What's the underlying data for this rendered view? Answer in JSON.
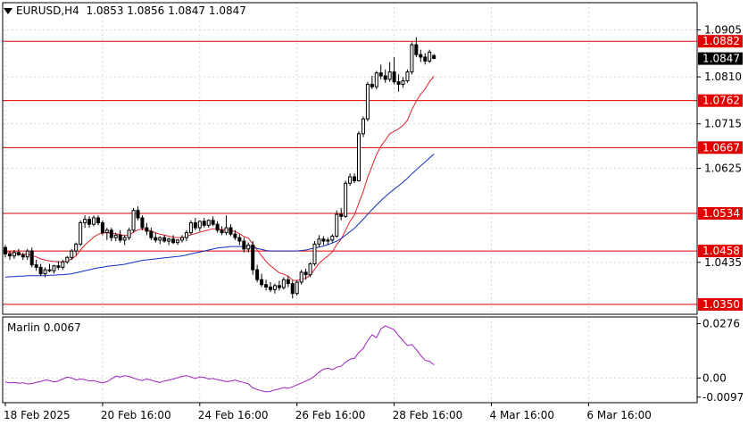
{
  "header": {
    "symbol": "EURUSD,H4",
    "ohlc": "1.0853 1.0856 1.0847 1.0847"
  },
  "indicator": {
    "label": "Marlin 0.0067"
  },
  "colors": {
    "background": "#ffffff",
    "grid": "#d6d6d6",
    "level": "#e00000",
    "candle": "#000000",
    "ma_fast": "#e0202a",
    "ma_slow": "#1030c0",
    "oscillator": "#a020c0"
  },
  "chart_data": [
    {
      "type": "candlestick",
      "title": "EURUSD,H4",
      "ylim": [
        1.033,
        1.096
      ],
      "y_ticks": [
        "1.0905",
        "1.0810",
        "1.0715",
        "1.0625",
        "1.0435"
      ],
      "x_tick_labels": [
        "18 Feb 2025",
        "20 Feb 16:00",
        "24 Feb 16:00",
        "26 Feb 16:00",
        "28 Feb 16:00",
        "4 Mar 16:00",
        "6 Mar 16:00"
      ],
      "x_tick_index": [
        0,
        22,
        44,
        66,
        88,
        110,
        132
      ],
      "last_price": "1.0847",
      "levels": [
        "1.0882",
        "1.0762",
        "1.0667",
        "1.0534",
        "1.0458",
        "1.0350"
      ],
      "candles": [
        [
          1.0465,
          1.047,
          1.0445,
          1.0452
        ],
        [
          1.0452,
          1.0458,
          1.044,
          1.0448
        ],
        [
          1.0448,
          1.046,
          1.0442,
          1.0455
        ],
        [
          1.0455,
          1.0462,
          1.0448,
          1.045
        ],
        [
          1.045,
          1.0455,
          1.044,
          1.0446
        ],
        [
          1.0446,
          1.0462,
          1.044,
          1.0458
        ],
        [
          1.0458,
          1.0465,
          1.0425,
          1.043
        ],
        [
          1.043,
          1.044,
          1.0418,
          1.0425
        ],
        [
          1.0425,
          1.0432,
          1.0408,
          1.0412
        ],
        [
          1.0412,
          1.0425,
          1.0405,
          1.042
        ],
        [
          1.042,
          1.0432,
          1.0415,
          1.0418
        ],
        [
          1.0418,
          1.043,
          1.0412,
          1.0428
        ],
        [
          1.0428,
          1.0438,
          1.042,
          1.0425
        ],
        [
          1.0425,
          1.044,
          1.042,
          1.0436
        ],
        [
          1.0436,
          1.0448,
          1.0432,
          1.0445
        ],
        [
          1.0445,
          1.0462,
          1.044,
          1.0458
        ],
        [
          1.0458,
          1.0475,
          1.045,
          1.0472
        ],
        [
          1.0472,
          1.052,
          1.0468,
          1.0515
        ],
        [
          1.0515,
          1.053,
          1.0505,
          1.0522
        ],
        [
          1.0522,
          1.0528,
          1.0505,
          1.0512
        ],
        [
          1.0512,
          1.053,
          1.0508,
          1.0525
        ],
        [
          1.0525,
          1.053,
          1.051,
          1.0515
        ],
        [
          1.0515,
          1.052,
          1.049,
          1.0495
        ],
        [
          1.0495,
          1.0505,
          1.048,
          1.05
        ],
        [
          1.05,
          1.0505,
          1.0478,
          1.0485
        ],
        [
          1.0485,
          1.0495,
          1.0478,
          1.049
        ],
        [
          1.049,
          1.05,
          1.0475,
          1.048
        ],
        [
          1.048,
          1.049,
          1.047,
          1.0485
        ],
        [
          1.0485,
          1.0505,
          1.048,
          1.05
        ],
        [
          1.05,
          1.0545,
          1.0495,
          1.054
        ],
        [
          1.054,
          1.0548,
          1.052,
          1.0525
        ],
        [
          1.0525,
          1.053,
          1.05,
          1.0505
        ],
        [
          1.0505,
          1.0515,
          1.049,
          1.0498
        ],
        [
          1.0498,
          1.0505,
          1.048,
          1.0485
        ],
        [
          1.0485,
          1.0495,
          1.0475,
          1.048
        ],
        [
          1.048,
          1.0488,
          1.0472,
          1.0485
        ],
        [
          1.0485,
          1.049,
          1.0475,
          1.0478
        ],
        [
          1.0478,
          1.0485,
          1.047,
          1.0482
        ],
        [
          1.0482,
          1.049,
          1.0472,
          1.0475
        ],
        [
          1.0475,
          1.0482,
          1.047,
          1.048
        ],
        [
          1.048,
          1.049,
          1.0475,
          1.0485
        ],
        [
          1.0485,
          1.05,
          1.0478,
          1.0495
        ],
        [
          1.0495,
          1.052,
          1.049,
          1.0515
        ],
        [
          1.0515,
          1.0525,
          1.05,
          1.0505
        ],
        [
          1.0505,
          1.052,
          1.0498,
          1.0518
        ],
        [
          1.0518,
          1.0525,
          1.0505,
          1.051
        ],
        [
          1.051,
          1.0522,
          1.0505,
          1.052
        ],
        [
          1.052,
          1.0528,
          1.0508,
          1.0512
        ],
        [
          1.0512,
          1.0518,
          1.0495,
          1.05
        ],
        [
          1.05,
          1.0508,
          1.049,
          1.0495
        ],
        [
          1.0495,
          1.053,
          1.049,
          1.0505
        ],
        [
          1.0505,
          1.0512,
          1.0488,
          1.0492
        ],
        [
          1.0492,
          1.05,
          1.048,
          1.0485
        ],
        [
          1.0485,
          1.0492,
          1.047,
          1.0478
        ],
        [
          1.0478,
          1.0485,
          1.0455,
          1.0462
        ],
        [
          1.0462,
          1.0475,
          1.0455,
          1.047
        ],
        [
          1.047,
          1.0478,
          1.041,
          1.042
        ],
        [
          1.042,
          1.043,
          1.0395,
          1.04
        ],
        [
          1.04,
          1.0412,
          1.0385,
          1.039
        ],
        [
          1.039,
          1.04,
          1.0378,
          1.0385
        ],
        [
          1.0385,
          1.0395,
          1.0375,
          1.038
        ],
        [
          1.038,
          1.0392,
          1.0372,
          1.0388
        ],
        [
          1.0388,
          1.0398,
          1.0378,
          1.0384
        ],
        [
          1.0384,
          1.0405,
          1.038,
          1.04
        ],
        [
          1.04,
          1.0408,
          1.0385,
          1.0392
        ],
        [
          1.0392,
          1.0398,
          1.0362,
          1.0372
        ],
        [
          1.0372,
          1.0398,
          1.0368,
          1.0395
        ],
        [
          1.0395,
          1.042,
          1.039,
          1.0415
        ],
        [
          1.0415,
          1.0422,
          1.04,
          1.041
        ],
        [
          1.041,
          1.0435,
          1.0405,
          1.0432
        ],
        [
          1.0432,
          1.0478,
          1.0428,
          1.0472
        ],
        [
          1.0472,
          1.049,
          1.0465,
          1.0482
        ],
        [
          1.0482,
          1.0488,
          1.047,
          1.0478
        ],
        [
          1.0478,
          1.0485,
          1.047,
          1.048
        ],
        [
          1.048,
          1.0492,
          1.0475,
          1.0488
        ],
        [
          1.0488,
          1.054,
          1.0485,
          1.0532
        ],
        [
          1.0532,
          1.0545,
          1.052,
          1.0528
        ],
        [
          1.0528,
          1.06,
          1.0525,
          1.0595
        ],
        [
          1.0595,
          1.0615,
          1.059,
          1.0608
        ],
        [
          1.0608,
          1.0615,
          1.0595,
          1.06
        ],
        [
          1.06,
          1.07,
          1.0598,
          1.0695
        ],
        [
          1.0695,
          1.073,
          1.0688,
          1.0725
        ],
        [
          1.0725,
          1.08,
          1.072,
          1.0795
        ],
        [
          1.0795,
          1.0812,
          1.0785,
          1.079
        ],
        [
          1.079,
          1.0822,
          1.0785,
          1.0818
        ],
        [
          1.0818,
          1.0835,
          1.0805,
          1.0812
        ],
        [
          1.0812,
          1.0825,
          1.0798,
          1.0805
        ],
        [
          1.0805,
          1.084,
          1.08,
          1.082
        ],
        [
          1.082,
          1.085,
          1.0795,
          1.08
        ],
        [
          1.08,
          1.0815,
          1.078,
          1.0795
        ],
        [
          1.0795,
          1.081,
          1.0788,
          1.0802
        ],
        [
          1.0802,
          1.0825,
          1.0798,
          1.082
        ],
        [
          1.082,
          1.088,
          1.0815,
          1.0875
        ],
        [
          1.0875,
          1.089,
          1.085,
          1.0855
        ],
        [
          1.0855,
          1.0865,
          1.084,
          1.085
        ],
        [
          1.085,
          1.0858,
          1.0835,
          1.0842
        ],
        [
          1.0842,
          1.0865,
          1.0838,
          1.086
        ],
        [
          1.0853,
          1.0856,
          1.0847,
          1.0847
        ]
      ],
      "series": [
        {
          "values": [
            1.0455,
            1.0455,
            1.0454,
            1.0453,
            1.0451,
            1.0452,
            1.0449,
            1.0446,
            1.0442,
            1.044,
            1.0438,
            1.0437,
            1.0436,
            1.0436,
            1.0438,
            1.0442,
            1.0448,
            1.046,
            1.047,
            1.0478,
            1.0486,
            1.0492,
            1.0494,
            1.0495,
            1.0494,
            1.0493,
            1.0491,
            1.0489,
            1.049,
            1.0496,
            1.0501,
            1.0502,
            1.0501,
            1.0498,
            1.0495,
            1.0492,
            1.049,
            1.0488,
            1.0486,
            1.0485,
            1.0485,
            1.0487,
            1.0491,
            1.0493,
            1.0496,
            1.0498,
            1.0501,
            1.0503,
            1.0503,
            1.0501,
            1.0502,
            1.05,
            1.0497,
            1.0493,
            1.0487,
            1.0484,
            1.0472,
            1.046,
            1.0448,
            1.0437,
            1.0428,
            1.0421,
            1.0414,
            1.0411,
            1.0407,
            1.0399,
            1.0398,
            1.0401,
            1.0403,
            1.0409,
            1.0421,
            1.0433,
            1.0441,
            1.0448,
            1.0456,
            1.0471,
            1.0482,
            1.05,
            1.0518,
            1.0531,
            1.0555,
            1.0578,
            1.0607,
            1.063,
            1.0653,
            1.067,
            1.0682,
            1.0695,
            1.07,
            1.0705,
            1.0712,
            1.0722,
            1.0744,
            1.0761,
            1.0775,
            1.0786,
            1.08,
            1.0811
          ]
        },
        {
          "values": [
            1.0405,
            1.0406,
            1.0406,
            1.0407,
            1.0407,
            1.0408,
            1.0408,
            1.0408,
            1.0408,
            1.0408,
            1.0409,
            1.0409,
            1.041,
            1.041,
            1.0411,
            1.0412,
            1.0414,
            1.0416,
            1.0418,
            1.042,
            1.0422,
            1.0424,
            1.0425,
            1.0427,
            1.0428,
            1.0429,
            1.043,
            1.0431,
            1.0433,
            1.0435,
            1.0437,
            1.0439,
            1.044,
            1.0441,
            1.0442,
            1.0443,
            1.0444,
            1.0445,
            1.0446,
            1.0447,
            1.0448,
            1.045,
            1.0452,
            1.0454,
            1.0456,
            1.0458,
            1.046,
            1.0462,
            1.0464,
            1.0465,
            1.0466,
            1.0467,
            1.0467,
            1.0467,
            1.0467,
            1.0467,
            1.0465,
            1.0463,
            1.0461,
            1.0459,
            1.0458,
            1.0458,
            1.0458,
            1.0458,
            1.0458,
            1.0458,
            1.0458,
            1.0459,
            1.046,
            1.0462,
            1.0464,
            1.0466,
            1.0468,
            1.0471,
            1.0474,
            1.0478,
            1.0483,
            1.049,
            1.0497,
            1.0504,
            1.0513,
            1.0522,
            1.0532,
            1.0542,
            1.0551,
            1.056,
            1.0568,
            1.0576,
            1.0583,
            1.059,
            1.0597,
            1.0605,
            1.0614,
            1.0622,
            1.063,
            1.0638,
            1.0646,
            1.0654
          ]
        }
      ]
    },
    {
      "type": "line",
      "title": "Marlin 0.0067",
      "ylim": [
        -0.0125,
        0.031
      ],
      "y_ticks": [
        "0.0276",
        "0.00",
        "-0.0097"
      ],
      "series": [
        {
          "values": [
            -0.002,
            -0.0025,
            -0.0022,
            -0.0026,
            -0.0024,
            -0.003,
            -0.0028,
            -0.0022,
            -0.0018,
            -0.001,
            -0.0012,
            -0.002,
            -0.0015,
            -0.0005,
            0.0005,
            0.0,
            -0.001,
            -0.0005,
            -0.0008,
            -0.0015,
            -0.0012,
            -0.002,
            -0.0025,
            -0.0018,
            -0.0005,
            0.001,
            0.0005,
            0.0012,
            0.0008,
            0.0,
            -0.0008,
            -0.0012,
            -0.0005,
            -0.001,
            -0.0018,
            -0.0022,
            -0.0015,
            -0.001,
            -0.0005,
            0.0002,
            0.0008,
            0.0012,
            0.0005,
            -0.0002,
            0.0006,
            0.0003,
            -0.0005,
            -0.0002,
            -0.0008,
            -0.0012,
            -0.0018,
            -0.0015,
            -0.001,
            -0.0018,
            -0.0022,
            -0.003,
            -0.005,
            -0.0058,
            -0.0065,
            -0.007,
            -0.0068,
            -0.006,
            -0.0055,
            -0.0048,
            -0.0052,
            -0.0045,
            -0.0035,
            -0.0025,
            -0.0015,
            -0.0005,
            0.001,
            0.003,
            0.0045,
            0.005,
            0.0042,
            0.0055,
            0.006,
            0.008,
            0.0095,
            0.01,
            0.013,
            0.015,
            0.019,
            0.022,
            0.0205,
            0.025,
            0.0265,
            0.0255,
            0.0245,
            0.0215,
            0.019,
            0.0165,
            0.017,
            0.0145,
            0.0115,
            0.009,
            0.0085,
            0.0067
          ]
        }
      ]
    }
  ]
}
